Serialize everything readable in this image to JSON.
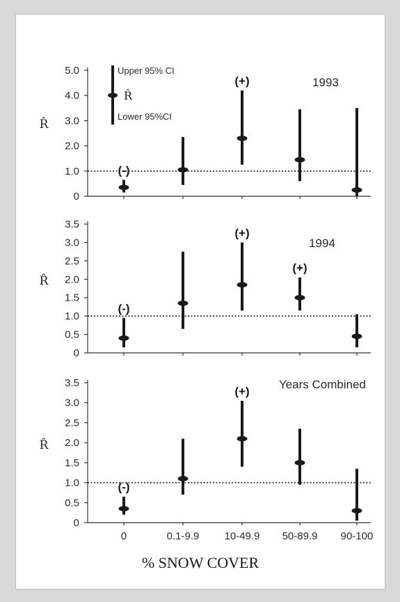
{
  "chart_data": {
    "type": "error-bar",
    "categories": [
      "0",
      "0.1-9.9",
      "10-49.9",
      "50-89.9",
      "90-100"
    ],
    "xlabel": "% SNOW COVER",
    "ylabel": "R̂",
    "reference_line": 1.0,
    "legend": {
      "upper": "Upper 95% CI",
      "estimate": "R̂",
      "lower": "Lower 95%CI"
    },
    "panels": [
      {
        "title": "1993",
        "ylim": [
          0,
          5.0
        ],
        "yticks": [
          "0",
          "1.0",
          "2.0",
          "3.0",
          "4.0",
          "5.0"
        ],
        "estimate": [
          0.35,
          1.05,
          2.3,
          1.45,
          0.25
        ],
        "lower": [
          0.15,
          0.45,
          1.25,
          0.6,
          0.0
        ],
        "upper": [
          0.65,
          2.35,
          4.2,
          3.45,
          3.5
        ],
        "significance": [
          "(-)",
          "",
          "(+)",
          "",
          ""
        ]
      },
      {
        "title": "1994",
        "ylim": [
          0,
          3.5
        ],
        "yticks": [
          "0",
          "0.5",
          "1.0",
          "1.5",
          "2.0",
          "2.5",
          "3.0",
          "3.5"
        ],
        "estimate": [
          0.4,
          1.35,
          1.85,
          1.5,
          0.45
        ],
        "lower": [
          0.15,
          0.65,
          1.15,
          1.15,
          0.15
        ],
        "upper": [
          0.95,
          2.75,
          3.0,
          2.05,
          1.05
        ],
        "significance": [
          "(-)",
          "",
          "(+)",
          "(+)",
          ""
        ]
      },
      {
        "title": "Years Combined",
        "ylim": [
          0,
          3.5
        ],
        "yticks": [
          "0",
          "0.5",
          "1.0",
          "1.5",
          "2.0",
          "2.5",
          "3.0",
          "3.5"
        ],
        "estimate": [
          0.35,
          1.1,
          2.1,
          1.5,
          0.3
        ],
        "lower": [
          0.2,
          0.7,
          1.4,
          0.95,
          0.05
        ],
        "upper": [
          0.65,
          2.1,
          3.05,
          2.35,
          1.35
        ],
        "significance": [
          "(-)",
          "",
          "(+)",
          "",
          ""
        ]
      }
    ]
  }
}
